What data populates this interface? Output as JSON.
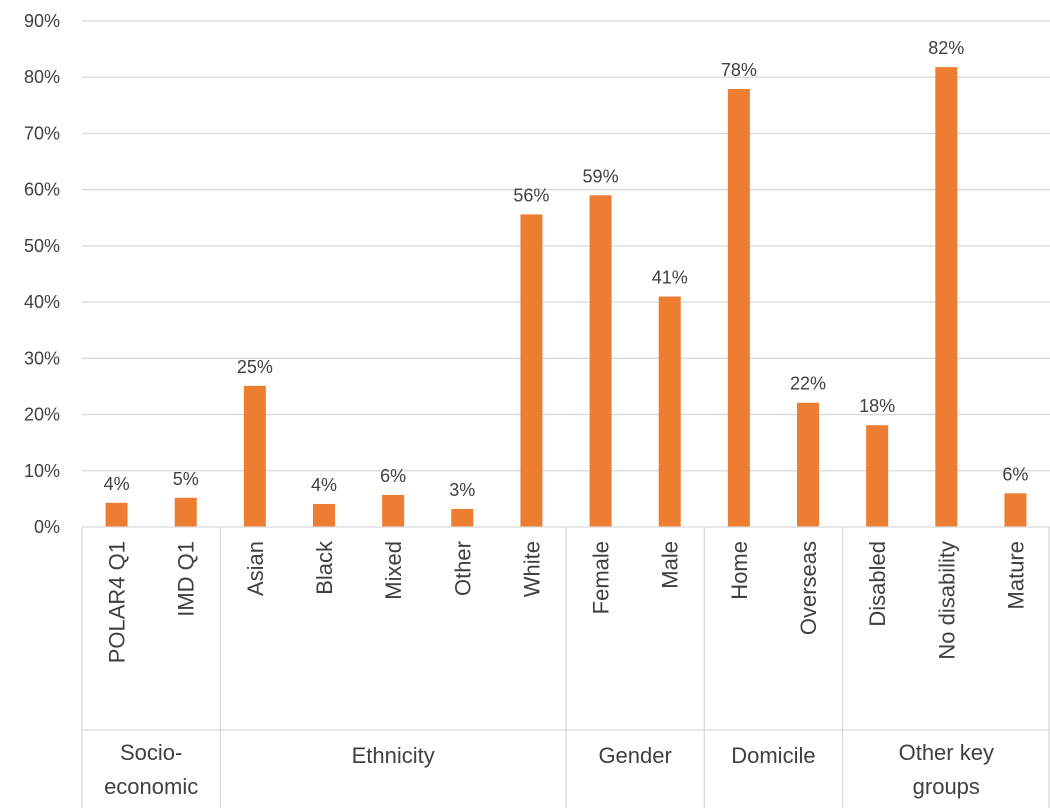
{
  "chart_data": {
    "type": "bar",
    "title": "",
    "xlabel": "",
    "ylabel": "",
    "ylim": [
      0,
      0.9
    ],
    "ytick_step": 0.1,
    "grid": true,
    "legend": "none",
    "bar_color": "#ED7D31",
    "grid_color": "#D9D9D9",
    "text_color": "#404040",
    "yticks": [
      "0%",
      "10%",
      "20%",
      "30%",
      "40%",
      "50%",
      "60%",
      "70%",
      "80%",
      "90%"
    ],
    "categories": [
      "POLAR4 Q1",
      "IMD Q1",
      "Asian",
      "Black",
      "Mixed",
      "Other",
      "White",
      "Female",
      "Male",
      "Home",
      "Overseas",
      "Disabled",
      "No disability",
      "Mature"
    ],
    "values": [
      0.043,
      0.052,
      0.251,
      0.041,
      0.057,
      0.032,
      0.556,
      0.59,
      0.41,
      0.779,
      0.221,
      0.181,
      0.818,
      0.06
    ],
    "data_labels": [
      "4%",
      "5%",
      "25%",
      "4%",
      "6%",
      "3%",
      "56%",
      "59%",
      "41%",
      "78%",
      "22%",
      "18%",
      "82%",
      "6%"
    ],
    "groups": [
      {
        "lines": [
          "Socio-",
          "economic"
        ],
        "start": 0,
        "count": 2
      },
      {
        "lines": [
          "Ethnicity"
        ],
        "start": 2,
        "count": 5
      },
      {
        "lines": [
          "Gender"
        ],
        "start": 7,
        "count": 2
      },
      {
        "lines": [
          "Domicile"
        ],
        "start": 9,
        "count": 2
      },
      {
        "lines": [
          "Other key",
          "groups"
        ],
        "start": 11,
        "count": 3
      }
    ]
  }
}
